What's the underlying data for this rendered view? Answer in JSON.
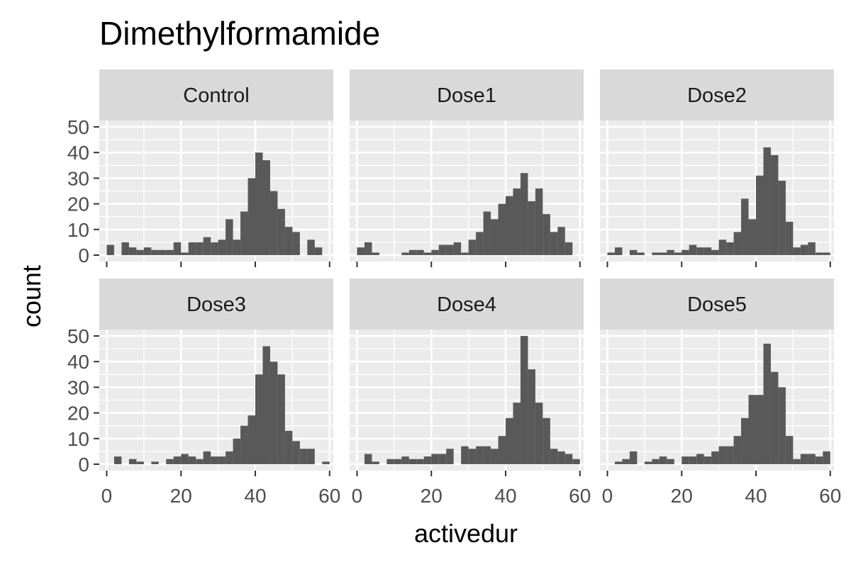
{
  "chart_data": {
    "type": "bar",
    "title": "Dimethylformamide",
    "xlabel": "activedur",
    "ylabel": "count",
    "xlim": [
      -2,
      61
    ],
    "ylim": [
      -2.5,
      52.5
    ],
    "x_ticks": [
      0,
      20,
      40,
      60
    ],
    "y_ticks": [
      0,
      10,
      20,
      30,
      40,
      50
    ],
    "bin_width": 2,
    "bin_starts": [
      0,
      2,
      4,
      6,
      8,
      10,
      12,
      14,
      16,
      18,
      20,
      22,
      24,
      26,
      28,
      30,
      32,
      34,
      36,
      38,
      40,
      42,
      44,
      46,
      48,
      50,
      52,
      54,
      56,
      58
    ],
    "grid": true,
    "facets": [
      {
        "label": "Control",
        "values": [
          4,
          0,
          5,
          3,
          2,
          3,
          2,
          2,
          2,
          5,
          1,
          5,
          5,
          7,
          5,
          6,
          14,
          6,
          17,
          30,
          40,
          37,
          25,
          18,
          11,
          9,
          0,
          6,
          3,
          0
        ]
      },
      {
        "label": "Dose1",
        "values": [
          3,
          5,
          1,
          0,
          0,
          0,
          1,
          2,
          2,
          1,
          2,
          4,
          4,
          5,
          1,
          6,
          9,
          17,
          14,
          20,
          23,
          26,
          32,
          21,
          26,
          16,
          9,
          11,
          5,
          0
        ]
      },
      {
        "label": "Dose2",
        "values": [
          1,
          3,
          0,
          2,
          1,
          0,
          1,
          1,
          2,
          1,
          2,
          4,
          3,
          3,
          2,
          6,
          5,
          9,
          22,
          14,
          31,
          42,
          39,
          29,
          13,
          3,
          4,
          5,
          1,
          1
        ]
      },
      {
        "label": "Dose3",
        "values": [
          0,
          3,
          0,
          2,
          1,
          0,
          1,
          0,
          2,
          3,
          4,
          3,
          2,
          5,
          3,
          3,
          5,
          10,
          15,
          19,
          35,
          46,
          40,
          35,
          13,
          9,
          6,
          6,
          0,
          1
        ]
      },
      {
        "label": "Dose4",
        "values": [
          0,
          4,
          1,
          0,
          2,
          2,
          3,
          2,
          2,
          3,
          4,
          4,
          6,
          0,
          7,
          6,
          7,
          7,
          6,
          11,
          18,
          24,
          50,
          37,
          24,
          18,
          6,
          5,
          4,
          2
        ]
      },
      {
        "label": "Dose5",
        "values": [
          0,
          1,
          2,
          5,
          0,
          1,
          2,
          3,
          2,
          0,
          3,
          3,
          4,
          3,
          5,
          7,
          7,
          11,
          18,
          27,
          27,
          47,
          36,
          30,
          11,
          2,
          4,
          4,
          3,
          5
        ]
      }
    ]
  }
}
